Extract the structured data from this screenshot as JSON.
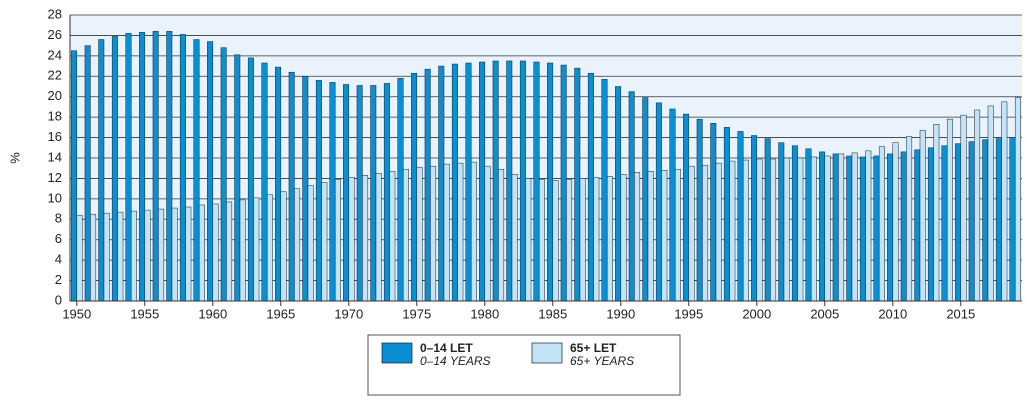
{
  "chart_data": {
    "type": "bar",
    "y_label": "%",
    "x": [
      1950,
      1951,
      1952,
      1953,
      1954,
      1955,
      1956,
      1957,
      1958,
      1959,
      1960,
      1961,
      1962,
      1963,
      1964,
      1965,
      1966,
      1967,
      1968,
      1969,
      1970,
      1971,
      1972,
      1973,
      1974,
      1975,
      1976,
      1977,
      1978,
      1979,
      1980,
      1981,
      1982,
      1983,
      1984,
      1985,
      1986,
      1987,
      1988,
      1989,
      1990,
      1991,
      1992,
      1993,
      1994,
      1995,
      1996,
      1997,
      1998,
      1999,
      2000,
      2001,
      2002,
      2003,
      2004,
      2005,
      2006,
      2007,
      2008,
      2009,
      2010,
      2011,
      2012,
      2013,
      2014,
      2015,
      2016,
      2017,
      2018,
      2019
    ],
    "xlim": [
      1949.5,
      2019.5
    ],
    "xticks": [
      1950,
      1955,
      1960,
      1965,
      1970,
      1975,
      1980,
      1985,
      1990,
      1995,
      2000,
      2005,
      2010,
      2015
    ],
    "ylim": [
      0,
      28
    ],
    "yticks": [
      0,
      2,
      4,
      6,
      8,
      10,
      12,
      14,
      16,
      18,
      20,
      22,
      24,
      26,
      28
    ],
    "grid": true,
    "series": [
      {
        "name": "0–14 LET",
        "name_en": "0–14 YEARS",
        "color": "#0a90d2",
        "values": [
          24.5,
          25.0,
          25.6,
          25.9,
          26.2,
          26.3,
          26.4,
          26.4,
          26.1,
          25.6,
          25.4,
          24.8,
          24.1,
          23.8,
          23.3,
          22.9,
          22.4,
          22.0,
          21.6,
          21.4,
          21.2,
          21.1,
          21.1,
          21.3,
          21.8,
          22.3,
          22.7,
          23.0,
          23.2,
          23.3,
          23.4,
          23.5,
          23.5,
          23.5,
          23.4,
          23.3,
          23.1,
          22.8,
          22.3,
          21.7,
          21.0,
          20.5,
          19.9,
          19.4,
          18.8,
          18.3,
          17.8,
          17.4,
          17.0,
          16.6,
          16.2,
          15.9,
          15.5,
          15.2,
          14.9,
          14.6,
          14.4,
          14.2,
          14.1,
          14.2,
          14.4,
          14.6,
          14.8,
          15.0,
          15.2,
          15.4,
          15.6,
          15.8,
          15.9,
          16.0
        ]
      },
      {
        "name": "65+ LET",
        "name_en": "65+ YEARS",
        "color": "#c2e4f6",
        "values": [
          8.4,
          8.5,
          8.6,
          8.7,
          8.8,
          8.9,
          9.0,
          9.1,
          9.2,
          9.4,
          9.5,
          9.7,
          9.9,
          10.1,
          10.4,
          10.7,
          11.0,
          11.3,
          11.6,
          11.9,
          12.1,
          12.3,
          12.5,
          12.7,
          12.9,
          13.1,
          13.2,
          13.4,
          13.5,
          13.6,
          13.2,
          12.9,
          12.4,
          12.0,
          11.9,
          11.8,
          11.9,
          12.0,
          12.1,
          12.2,
          12.4,
          12.6,
          12.7,
          12.8,
          12.9,
          13.2,
          13.3,
          13.5,
          13.7,
          13.8,
          13.9,
          13.9,
          14.0,
          14.0,
          14.1,
          14.2,
          14.4,
          14.5,
          14.7,
          15.1,
          15.5,
          16.1,
          16.7,
          17.3,
          17.8,
          18.2,
          18.7,
          19.1,
          19.5,
          19.9
        ]
      }
    ]
  }
}
